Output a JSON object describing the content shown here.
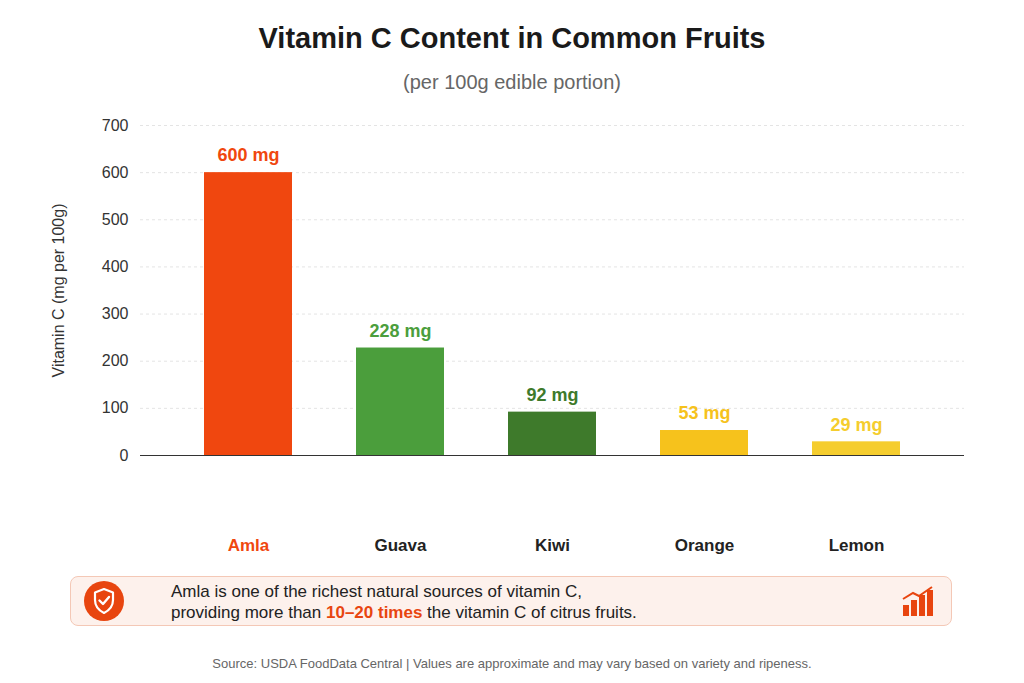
{
  "chart_data": {
    "type": "bar",
    "title": "Vitamin C Content in Common Fruits",
    "subtitle": "(per 100g edible portion)",
    "y_label": "Vitamin C (mg per 100g)",
    "categories": [
      "Amla",
      "Guava",
      "Kiwi",
      "Orange",
      "Lemon"
    ],
    "values": [
      600,
      228,
      92,
      53,
      29
    ],
    "value_labels": [
      "600 mg",
      "228 mg",
      "92 mg",
      "53 mg",
      "29 mg"
    ],
    "colors": [
      "#f0470f",
      "#4b9e3c",
      "#3e7a2b",
      "#f6c21c",
      "#f5cd2e"
    ],
    "ylim": [
      0,
      700
    ],
    "yticks": [
      0,
      100,
      200,
      300,
      400,
      500,
      600,
      700
    ],
    "grid": true,
    "data_labels": true,
    "annotation": "Amla is one of the richest natural sources of vitamin C, providing more than 10–20 times the vitamin C of citrus fruits.",
    "annotation_highlight": "10–20 times",
    "source": "Source: USDA FoodData Central | Values are approximate and may vary based on variety and ripeness."
  }
}
